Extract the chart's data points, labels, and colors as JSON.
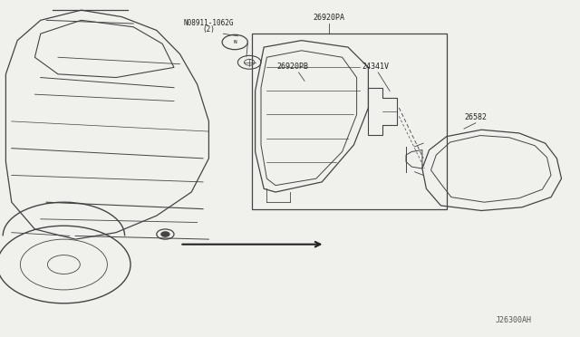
{
  "bg_color": "#f0f0ec",
  "line_color": "#444444",
  "dark_color": "#222222",
  "diagram_code": "J26300AH",
  "label_N": "N08911-1062G",
  "label_N2": "(2)",
  "label_26920PA": "26920PA",
  "label_26920PB": "26920PB",
  "label_24341V": "24341V",
  "label_26582": "26582",
  "figsize": [
    6.4,
    3.72
  ],
  "dpi": 100
}
